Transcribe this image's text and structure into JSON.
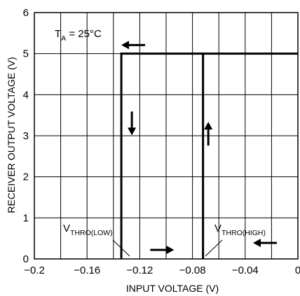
{
  "chart_data": {
    "type": "line",
    "title": "",
    "xlabel": "INPUT VOLTAGE (V)",
    "ylabel": "RECEIVER OUTPUT VOLTAGE (V)",
    "xlim": [
      -0.2,
      0
    ],
    "ylim": [
      0,
      6
    ],
    "grid": true,
    "x_ticks": [
      -0.2,
      -0.16,
      -0.12,
      -0.08,
      -0.04,
      0
    ],
    "x_tick_labels": [
      "−0.2",
      "−0.16",
      "−0.12",
      "−0.08",
      "−0.04",
      "0"
    ],
    "y_ticks": [
      0,
      1,
      2,
      3,
      4,
      5,
      6
    ],
    "y_tick_labels": [
      "0",
      "1",
      "2",
      "3",
      "4",
      "5",
      "6"
    ],
    "series": [
      {
        "values_note_free": true,
        "x": [
          -0.134,
          -0.134,
          0
        ],
        "y": [
          0,
          5,
          5
        ]
      },
      {
        "x": [
          -0.072,
          -0.072
        ],
        "y": [
          0,
          5
        ]
      }
    ],
    "annotations": {
      "temp_main": "T",
      "temp_sub": "A",
      "temp_rest": " = 25°C",
      "thr_low_main": "V",
      "thr_low_sub": "THRO(LOW)",
      "thr_high_main": "V",
      "thr_high_sub": "THRO(HIGH)"
    },
    "direction_arrows": [
      {
        "name": "arrow-left-top",
        "x": -0.125,
        "y": 5.21,
        "dir": "left"
      },
      {
        "name": "arrow-down-low-thr",
        "x": -0.126,
        "y": 3.3,
        "dir": "down"
      },
      {
        "name": "arrow-up-high-thr",
        "x": -0.068,
        "y": 3.05,
        "dir": "up"
      },
      {
        "name": "arrow-right-bottom",
        "x": -0.103,
        "y": 0.22,
        "dir": "right"
      },
      {
        "name": "arrow-left-bottom",
        "x": -0.025,
        "y": 0.39,
        "dir": "left"
      }
    ]
  }
}
